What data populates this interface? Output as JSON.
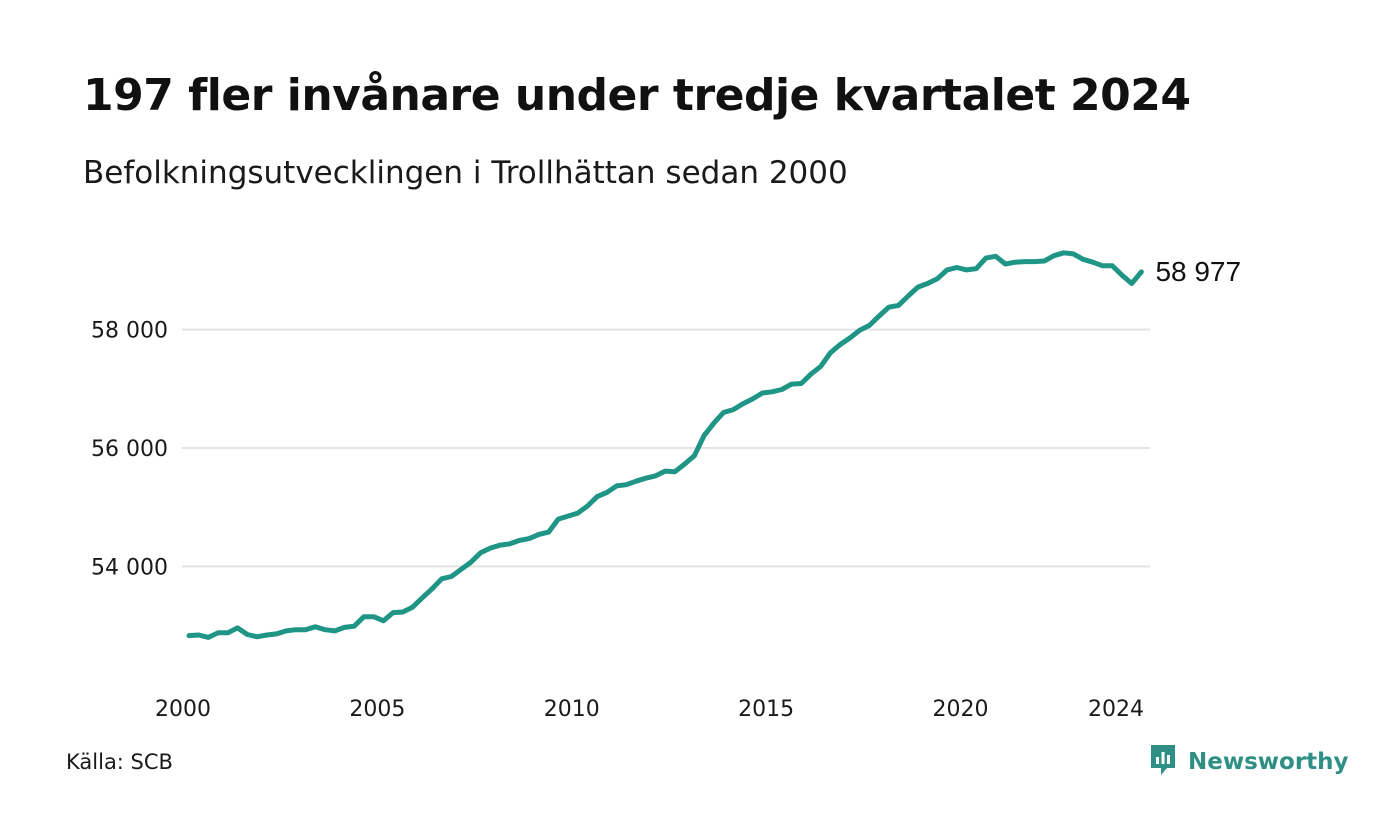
{
  "title": "197 fler invånare under tredje kvartalet 2024",
  "subtitle": "Befolkningsutvecklingen i Trollhättan sedan 2000",
  "source": "Källa: SCB",
  "brand": {
    "name": "Newsworthy",
    "icon": "newsworthy-logo-icon",
    "color": "#2f8f85"
  },
  "chart_data": {
    "type": "line",
    "x_unit": "quarter",
    "x_start": 2000.0,
    "x_step": 0.25,
    "xlim": [
      2000,
      2024.75
    ],
    "x_ticks": [
      {
        "value": 2000,
        "label": "2000"
      },
      {
        "value": 2005,
        "label": "2005"
      },
      {
        "value": 2010,
        "label": "2010"
      },
      {
        "value": 2015,
        "label": "2015"
      },
      {
        "value": 2020,
        "label": "2020"
      },
      {
        "value": 2024,
        "label": "2024"
      }
    ],
    "ylim": [
      52300,
      59600
    ],
    "y_ticks": [
      {
        "value": 54000,
        "label": "54 000"
      },
      {
        "value": 56000,
        "label": "56 000"
      },
      {
        "value": 58000,
        "label": "58 000"
      }
    ],
    "grid": "horizontal",
    "line_color": "#1f9585",
    "grid_color": "#e3e3e3",
    "end_label": "58 977",
    "series": [
      {
        "values": [
          52830,
          52840,
          52800,
          52880,
          52880,
          52960,
          52850,
          52810,
          52840,
          52860,
          52910,
          52930,
          52930,
          52980,
          52930,
          52910,
          52970,
          52990,
          53150,
          53150,
          53080,
          53220,
          53230,
          53310,
          53470,
          53620,
          53790,
          53830,
          53950,
          54070,
          54230,
          54310,
          54360,
          54380,
          54440,
          54470,
          54540,
          54580,
          54800,
          54850,
          54900,
          55020,
          55180,
          55250,
          55360,
          55380,
          55440,
          55490,
          55530,
          55610,
          55600,
          55730,
          55870,
          56210,
          56420,
          56600,
          56650,
          56750,
          56830,
          56930,
          56950,
          56990,
          57080,
          57090,
          57250,
          57380,
          57610,
          57750,
          57860,
          57990,
          58070,
          58230,
          58380,
          58410,
          58570,
          58720,
          58780,
          58860,
          59010,
          59050,
          59010,
          59030,
          59210,
          59240,
          59110,
          59140,
          59150,
          59150,
          59160,
          59250,
          59300,
          59280,
          59190,
          59140,
          59080,
          59080,
          58920,
          58780,
          58977
        ]
      }
    ]
  }
}
